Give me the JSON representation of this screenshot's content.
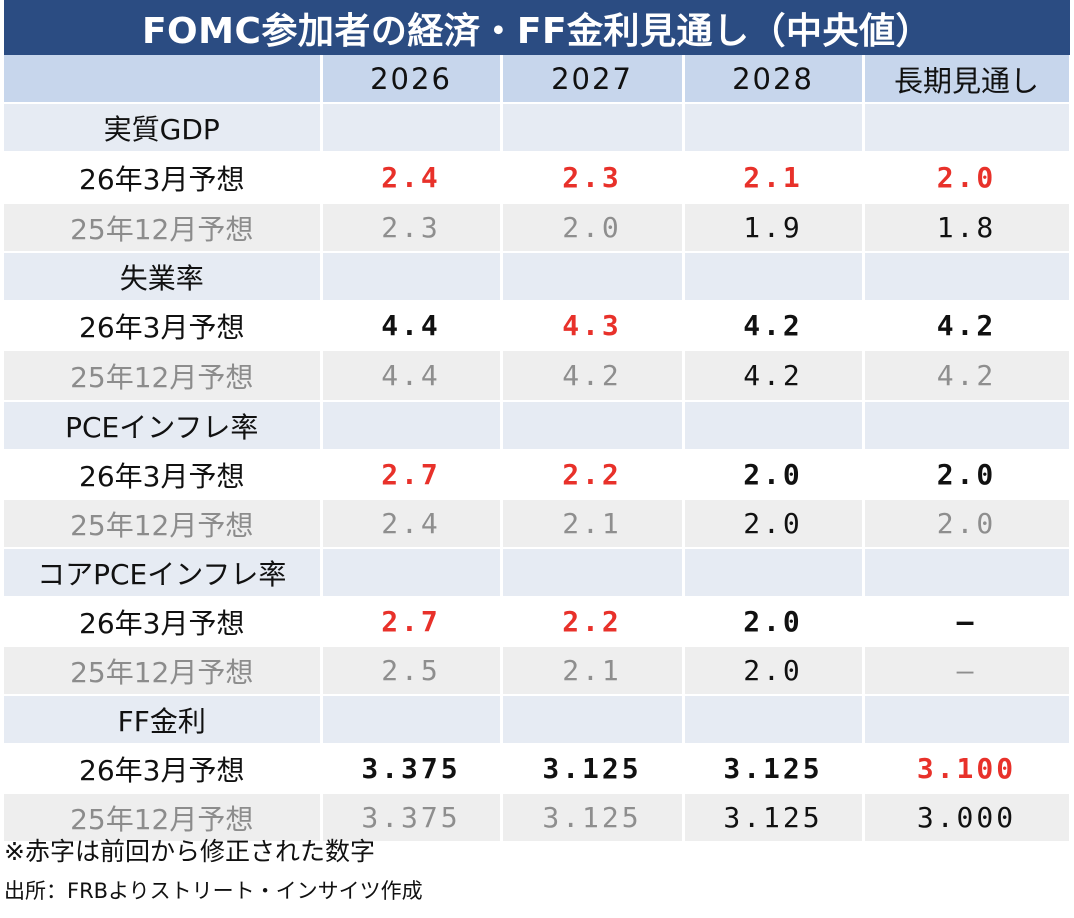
{
  "title": "FOMC参加者の経済・FF金利見通し（中央値）",
  "columns": [
    "",
    "2026",
    "2027",
    "2028",
    "長期見通し"
  ],
  "sections": [
    {
      "name": "実質GDP",
      "rows": [
        {
          "label": "26年3月予想",
          "kind": "current",
          "cells": [
            {
              "v": "2.4",
              "c": "red"
            },
            {
              "v": "2.3",
              "c": "red"
            },
            {
              "v": "2.1",
              "c": "red"
            },
            {
              "v": "2.0",
              "c": "red"
            }
          ]
        },
        {
          "label": "25年12月予想",
          "kind": "prev",
          "cells": [
            {
              "v": "2.3",
              "c": "gray"
            },
            {
              "v": "2.0",
              "c": "gray"
            },
            {
              "v": "1.9",
              "c": "black"
            },
            {
              "v": "1.8",
              "c": "black"
            }
          ]
        }
      ]
    },
    {
      "name": "失業率",
      "rows": [
        {
          "label": "26年3月予想",
          "kind": "current",
          "cells": [
            {
              "v": "4.4",
              "c": "black"
            },
            {
              "v": "4.3",
              "c": "red"
            },
            {
              "v": "4.2",
              "c": "black"
            },
            {
              "v": "4.2",
              "c": "black"
            }
          ]
        },
        {
          "label": "25年12月予想",
          "kind": "prev",
          "cells": [
            {
              "v": "4.4",
              "c": "gray"
            },
            {
              "v": "4.2",
              "c": "gray"
            },
            {
              "v": "4.2",
              "c": "black"
            },
            {
              "v": "4.2",
              "c": "gray"
            }
          ]
        }
      ]
    },
    {
      "name": "PCEインフレ率",
      "rows": [
        {
          "label": "26年3月予想",
          "kind": "current",
          "cells": [
            {
              "v": "2.7",
              "c": "red"
            },
            {
              "v": "2.2",
              "c": "red"
            },
            {
              "v": "2.0",
              "c": "black"
            },
            {
              "v": "2.0",
              "c": "black"
            }
          ]
        },
        {
          "label": "25年12月予想",
          "kind": "prev",
          "cells": [
            {
              "v": "2.4",
              "c": "gray"
            },
            {
              "v": "2.1",
              "c": "gray"
            },
            {
              "v": "2.0",
              "c": "black"
            },
            {
              "v": "2.0",
              "c": "gray"
            }
          ]
        }
      ]
    },
    {
      "name": "コアPCEインフレ率",
      "rows": [
        {
          "label": "26年3月予想",
          "kind": "current",
          "cells": [
            {
              "v": "2.7",
              "c": "red"
            },
            {
              "v": "2.2",
              "c": "red"
            },
            {
              "v": "2.0",
              "c": "black"
            },
            {
              "v": "―",
              "c": "black"
            }
          ]
        },
        {
          "label": "25年12月予想",
          "kind": "prev",
          "cells": [
            {
              "v": "2.5",
              "c": "gray"
            },
            {
              "v": "2.1",
              "c": "gray"
            },
            {
              "v": "2.0",
              "c": "black"
            },
            {
              "v": "―",
              "c": "gray"
            }
          ]
        }
      ]
    },
    {
      "name": "FF金利",
      "rows": [
        {
          "label": "26年3月予想",
          "kind": "current",
          "cells": [
            {
              "v": "3.375",
              "c": "black"
            },
            {
              "v": "3.125",
              "c": "black"
            },
            {
              "v": "3.125",
              "c": "black"
            },
            {
              "v": "3.100",
              "c": "red"
            }
          ]
        },
        {
          "label": "25年12月予想",
          "kind": "prev",
          "cells": [
            {
              "v": "3.375",
              "c": "gray"
            },
            {
              "v": "3.125",
              "c": "gray"
            },
            {
              "v": "3.125",
              "c": "black"
            },
            {
              "v": "3.000",
              "c": "black"
            }
          ]
        }
      ]
    }
  ],
  "note": "※赤字は前回から修正された数字",
  "source": "出所：FRBよりストリート・インサイツ作成",
  "colors": {
    "header_bg": "#2b4c82",
    "column_header_bg": "#c7d6ec",
    "revised": "#e8312a",
    "previous": "#8e8e8e"
  },
  "chart_data": {
    "type": "table",
    "title": "FOMC参加者の経済・FF金利見通し（中央値）",
    "columns": [
      "2026",
      "2027",
      "2028",
      "長期見通し"
    ],
    "rows": [
      {
        "group": "実質GDP",
        "label": "26年3月予想",
        "values": [
          2.4,
          2.3,
          2.1,
          2.0
        ]
      },
      {
        "group": "実質GDP",
        "label": "25年12月予想",
        "values": [
          2.3,
          2.0,
          1.9,
          1.8
        ]
      },
      {
        "group": "失業率",
        "label": "26年3月予想",
        "values": [
          4.4,
          4.3,
          4.2,
          4.2
        ]
      },
      {
        "group": "失業率",
        "label": "25年12月予想",
        "values": [
          4.4,
          4.2,
          4.2,
          4.2
        ]
      },
      {
        "group": "PCEインフレ率",
        "label": "26年3月予想",
        "values": [
          2.7,
          2.2,
          2.0,
          2.0
        ]
      },
      {
        "group": "PCEインフレ率",
        "label": "25年12月予想",
        "values": [
          2.4,
          2.1,
          2.0,
          2.0
        ]
      },
      {
        "group": "コアPCEインフレ率",
        "label": "26年3月予想",
        "values": [
          2.7,
          2.2,
          2.0,
          null
        ]
      },
      {
        "group": "コアPCEインフレ率",
        "label": "25年12月予想",
        "values": [
          2.5,
          2.1,
          2.0,
          null
        ]
      },
      {
        "group": "FF金利",
        "label": "26年3月予想",
        "values": [
          3.375,
          3.125,
          3.125,
          3.1
        ]
      },
      {
        "group": "FF金利",
        "label": "25年12月予想",
        "values": [
          3.375,
          3.125,
          3.125,
          3.0
        ]
      }
    ]
  }
}
